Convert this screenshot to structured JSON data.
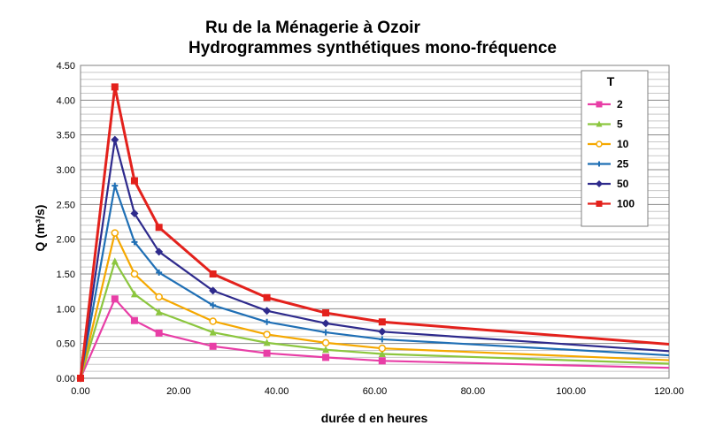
{
  "chart_data": {
    "type": "line",
    "title": "Ru de la Ménagerie à Ozoir",
    "subtitle": "Hydrogrammes synthétiques mono-fréquence",
    "xlabel": "durée d en heures",
    "ylabel": "Q (m³/s)",
    "xlim": [
      0,
      120
    ],
    "ylim": [
      0,
      4.5
    ],
    "x_ticks": [
      "0.00",
      "20.00",
      "40.00",
      "60.00",
      "80.00",
      "100.00",
      "120.00"
    ],
    "y_ticks": [
      "0.00",
      "0.50",
      "1.00",
      "1.50",
      "2.00",
      "2.50",
      "3.00",
      "3.50",
      "4.00",
      "4.50"
    ],
    "grid": "horizontal",
    "legend": {
      "title": "T",
      "position": "top-right"
    },
    "x": [
      0,
      7,
      11,
      16,
      27,
      38,
      50,
      61.5
    ],
    "x_end": 120,
    "series": [
      {
        "name": "2",
        "color": "#e83ea6",
        "marker": "square",
        "values": [
          0,
          1.14,
          0.83,
          0.65,
          0.46,
          0.36,
          0.3,
          0.25
        ],
        "end_value": 0.15
      },
      {
        "name": "5",
        "color": "#8cc63f",
        "marker": "triangle",
        "values": [
          0,
          1.68,
          1.21,
          0.95,
          0.66,
          0.51,
          0.41,
          0.35
        ],
        "end_value": 0.21
      },
      {
        "name": "10",
        "color": "#f5a800",
        "marker": "circle",
        "values": [
          0,
          2.09,
          1.5,
          1.17,
          0.82,
          0.63,
          0.51,
          0.43
        ],
        "end_value": 0.26
      },
      {
        "name": "25",
        "color": "#1f6fb5",
        "marker": "plus",
        "values": [
          0,
          2.77,
          1.96,
          1.52,
          1.05,
          0.81,
          0.66,
          0.56
        ],
        "end_value": 0.33
      },
      {
        "name": "50",
        "color": "#2e2a8c",
        "marker": "diamond",
        "values": [
          0,
          3.43,
          2.37,
          1.82,
          1.26,
          0.97,
          0.79,
          0.67
        ],
        "end_value": 0.39
      },
      {
        "name": "100",
        "color": "#e3211c",
        "marker": "square",
        "values": [
          0,
          4.19,
          2.84,
          2.17,
          1.5,
          1.16,
          0.94,
          0.81
        ],
        "end_value": 0.49
      }
    ]
  }
}
